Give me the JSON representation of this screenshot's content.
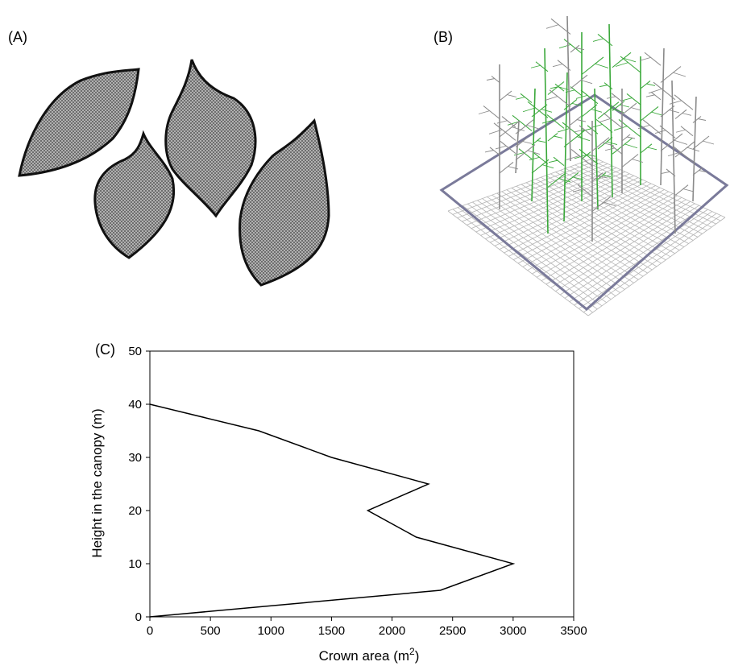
{
  "panels": {
    "a": {
      "label": "(A)"
    },
    "b": {
      "label": "(B)"
    },
    "c": {
      "label": "(C)"
    }
  },
  "colors": {
    "leaf_fill": "#9a9a9a",
    "leaf_outline": "#111111",
    "branch_green": "#3aa83a",
    "branch_gray": "#8a8a8a",
    "frame": "#7a7a9a",
    "grid": "#b5b5b5",
    "line": "#000000"
  },
  "chart_data": {
    "type": "line",
    "xlabel": "Crown area (m",
    "xlabel_sup": "2",
    "xlabel_suffix": ")",
    "ylabel": "Height in the canopy (m)",
    "xlim": [
      0,
      3500
    ],
    "ylim": [
      0,
      50
    ],
    "xticks": [
      0,
      500,
      1000,
      1500,
      2000,
      2500,
      3000,
      3500
    ],
    "yticks": [
      0,
      10,
      20,
      30,
      40,
      50
    ],
    "points": [
      {
        "x": 0,
        "y": 0
      },
      {
        "x": 2400,
        "y": 5
      },
      {
        "x": 3000,
        "y": 10
      },
      {
        "x": 2200,
        "y": 15
      },
      {
        "x": 1800,
        "y": 20
      },
      {
        "x": 2300,
        "y": 25
      },
      {
        "x": 1500,
        "y": 30
      },
      {
        "x": 900,
        "y": 35
      },
      {
        "x": 0,
        "y": 40
      }
    ]
  }
}
